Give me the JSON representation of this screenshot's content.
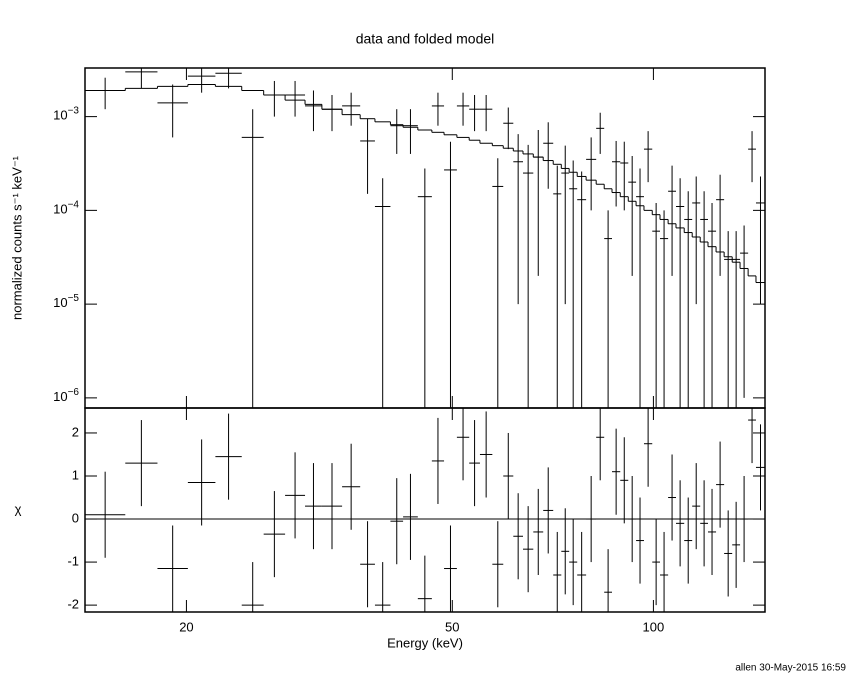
{
  "chart_data": [
    {
      "type": "errorbar",
      "title": "data and folded model",
      "ylabel": "normalized counts s⁻¹ keV⁻¹",
      "ylog": true,
      "xlog": true,
      "xlim": [
        14.1,
        146.9
      ],
      "xticks": [
        20,
        50,
        100
      ],
      "ylim": [
        7.8e-07,
        0.0033
      ],
      "yticks": [
        {
          "value": 0.001,
          "label": "10",
          "power": "−3"
        },
        {
          "value": 0.0001,
          "label": "10",
          "power": "−4"
        },
        {
          "value": 1e-05,
          "label": "10",
          "power": "−5"
        },
        {
          "value": 1e-06,
          "label": "10",
          "power": "−6"
        }
      ],
      "bins": [
        14.1,
        16.2,
        18.1,
        20.1,
        22.1,
        24.2,
        26.1,
        28.1,
        30.1,
        31.9,
        34.2,
        36.4,
        38.3,
        40.4,
        42.2,
        44.4,
        46.6,
        48.6,
        50.8,
        53.0,
        55.0,
        57.4,
        59.6,
        61.7,
        63.8,
        66.1,
        68.4,
        70.8,
        72.8,
        74.8,
        76.9,
        79.3,
        82.1,
        84.4,
        86.7,
        89.2,
        91.7,
        94.2,
        96.8,
        99.6,
        102.3,
        105.2,
        108.1,
        111.2,
        114.3,
        117.5,
        120.7,
        124.1,
        127.6,
        131.2,
        134.8,
        138.6,
        142.4,
        146.9
      ],
      "data": {
        "color": "#000000",
        "values": [
          0.0019,
          0.003,
          0.0014,
          0.0027,
          0.0029,
          0.0006,
          0.0017,
          0.0017,
          0.0013,
          0.0012,
          0.0013,
          0.00055,
          0.00011,
          0.0008,
          0.0008,
          0.00014,
          0.0013,
          0.00027,
          0.0013,
          0.0012,
          0.0012,
          0.00018,
          0.00085,
          0.00033,
          0.00025,
          0.00037,
          0.00052,
          0.00015,
          0.00025,
          0.00017,
          0.00013,
          0.00035,
          0.00075,
          5e-05,
          0.00033,
          0.00032,
          0.0002,
          0.00014,
          0.00045,
          6e-05,
          5e-05,
          0.00016,
          0.00011,
          8e-05,
          0.00012,
          8e-05,
          6e-05,
          0.00013,
          3e-05,
          3e-05,
          3.5e-05,
          0.00045,
          0.00012
        ],
        "errors": [
          0.0007,
          0.001,
          0.0008,
          0.0009,
          0.0009,
          0.0006,
          0.0007,
          0.0007,
          0.0006,
          0.0005,
          0.0005,
          0.0004,
          0.00011,
          0.0004,
          0.0004,
          0.00014,
          0.0005,
          0.00027,
          0.0005,
          0.0005,
          0.0005,
          0.00018,
          0.0004,
          0.00032,
          0.00025,
          0.00035,
          0.00035,
          0.00015,
          0.00024,
          0.00017,
          0.00013,
          0.00025,
          0.00035,
          5e-05,
          0.00022,
          0.00022,
          0.00018,
          0.00014,
          0.00025,
          6e-05,
          5e-05,
          0.00014,
          0.00011,
          8e-05,
          0.00011,
          8e-05,
          6e-05,
          0.00011,
          3e-05,
          3e-05,
          3.4e-05,
          0.00025,
          0.00011
        ]
      },
      "model": {
        "color": "#000000",
        "values": [
          0.0019,
          0.002,
          0.0021,
          0.0022,
          0.0021,
          0.0019,
          0.0017,
          0.0015,
          0.00135,
          0.0012,
          0.00105,
          0.00095,
          0.00088,
          0.00082,
          0.00077,
          0.00072,
          0.00068,
          0.00064,
          0.0006,
          0.00056,
          0.00052,
          0.00049,
          0.00046,
          0.00043,
          0.0004,
          0.00037,
          0.00034,
          0.00031,
          0.00028,
          0.000255,
          0.00023,
          0.00021,
          0.00019,
          0.00017,
          0.000155,
          0.00014,
          0.000125,
          0.000112,
          0.0001,
          9e-05,
          8e-05,
          7.2e-05,
          6.5e-05,
          5.8e-05,
          5.2e-05,
          4.6e-05,
          4.1e-05,
          3.6e-05,
          3.2e-05,
          2.8e-05,
          2.4e-05,
          2e-05,
          1.7e-05
        ]
      }
    },
    {
      "type": "errorbar",
      "xlabel": "Energy (keV)",
      "ylabel": "χ",
      "xlog": true,
      "xlim": [
        14.1,
        146.9
      ],
      "xticks": [
        20,
        50,
        100
      ],
      "ylim": [
        -2.16,
        2.58
      ],
      "yticks": [
        -2,
        -1,
        0,
        1,
        2
      ],
      "bins": [
        14.1,
        16.2,
        18.1,
        20.1,
        22.1,
        24.2,
        26.1,
        28.1,
        30.1,
        31.9,
        34.2,
        36.4,
        38.3,
        40.4,
        42.2,
        44.4,
        46.6,
        48.6,
        50.8,
        53.0,
        55.0,
        57.4,
        59.6,
        61.7,
        63.8,
        66.1,
        68.4,
        70.8,
        72.8,
        74.8,
        76.9,
        79.3,
        82.1,
        84.4,
        86.7,
        89.2,
        91.7,
        94.2,
        96.8,
        99.6,
        102.3,
        105.2,
        108.1,
        111.2,
        114.3,
        117.5,
        120.7,
        124.1,
        127.6,
        131.2,
        134.8,
        138.6,
        142.4,
        146.9
      ],
      "data": {
        "color": "#000000",
        "values": [
          0.1,
          1.3,
          -1.15,
          0.85,
          1.45,
          -2.0,
          -0.35,
          0.55,
          0.3,
          0.3,
          0.75,
          -1.05,
          -2.0,
          -0.05,
          0.05,
          -1.85,
          1.35,
          -1.15,
          1.9,
          1.3,
          1.5,
          -1.05,
          1.0,
          -0.4,
          -0.7,
          -0.3,
          0.2,
          -1.3,
          -0.75,
          -1.0,
          -1.3,
          0.0,
          1.9,
          -1.7,
          1.1,
          0.9,
          0.0,
          -0.5,
          1.75,
          -1.0,
          -1.3,
          0.5,
          -0.1,
          -0.5,
          0.3,
          -0.1,
          -0.3,
          0.8,
          -0.8,
          -0.6,
          0.0,
          2.3,
          1.2
        ],
        "errors": [
          1,
          1,
          1,
          1,
          1,
          1,
          1,
          1,
          1,
          1,
          1,
          1,
          1,
          1,
          1,
          1,
          1,
          1,
          1,
          1,
          1,
          1,
          1,
          1,
          1,
          1,
          1,
          1,
          1,
          1,
          1,
          1,
          1,
          1,
          1,
          1,
          1,
          1,
          1,
          1,
          1,
          1,
          1,
          1,
          1,
          1,
          1,
          1,
          1,
          1,
          1,
          1,
          1
        ]
      },
      "baseline": {
        "value": 0,
        "color": "#22dd22"
      }
    }
  ],
  "footer": "allen 30-May-2015 16:59"
}
